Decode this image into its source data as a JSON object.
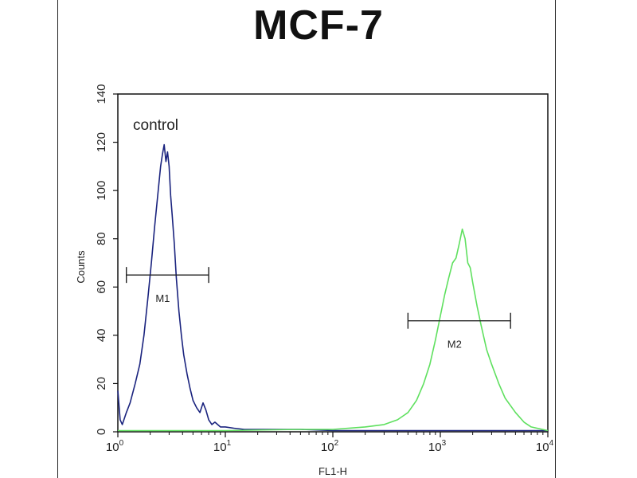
{
  "chart_data": {
    "type": "line",
    "title": "MCF-7",
    "xlabel": "FL1-H",
    "ylabel": "Counts",
    "x_scale": "log",
    "xlim": [
      1,
      10000
    ],
    "ylim": [
      0,
      140
    ],
    "x_ticks": [
      {
        "base": "10",
        "exp": "0",
        "value": 1
      },
      {
        "base": "10",
        "exp": "1",
        "value": 10
      },
      {
        "base": "10",
        "exp": "2",
        "value": 100
      },
      {
        "base": "10",
        "exp": "3",
        "value": 1000
      },
      {
        "base": "10",
        "exp": "4",
        "value": 10000
      }
    ],
    "y_ticks": [
      "0",
      "20",
      "40",
      "60",
      "80",
      "100",
      "120",
      "140"
    ],
    "annotation": "control",
    "colors": {
      "control": "#1a237e",
      "sample": "#5fe05f"
    },
    "markers": [
      {
        "label": "M1",
        "x_start": 1.2,
        "x_end": 7.0,
        "y": 65
      },
      {
        "label": "M2",
        "x_start": 500,
        "x_end": 4500,
        "y": 46
      }
    ],
    "series": [
      {
        "color_key": "control",
        "x": [
          1.0,
          1.05,
          1.1,
          1.2,
          1.3,
          1.45,
          1.6,
          1.75,
          1.9,
          2.05,
          2.2,
          2.35,
          2.5,
          2.6,
          2.7,
          2.8,
          2.9,
          3.0,
          3.1,
          3.2,
          3.35,
          3.5,
          3.7,
          3.9,
          4.1,
          4.4,
          4.7,
          5.0,
          5.4,
          5.8,
          6.2,
          6.6,
          7.0,
          7.5,
          8.0,
          9.0,
          10,
          12,
          15,
          20,
          30,
          50,
          100,
          300,
          1000,
          3000,
          10000
        ],
        "y": [
          17,
          5,
          3,
          8,
          12,
          20,
          28,
          40,
          55,
          70,
          85,
          98,
          110,
          115,
          119,
          112,
          116,
          110,
          98,
          90,
          78,
          64,
          50,
          40,
          32,
          24,
          18,
          13,
          10,
          8,
          12,
          9,
          5,
          3,
          4,
          2,
          2,
          1.5,
          1,
          1,
          1,
          1,
          0.5,
          0.5,
          0.5,
          0.5,
          0.5
        ]
      },
      {
        "color_key": "sample",
        "x": [
          1,
          10,
          50,
          100,
          200,
          300,
          400,
          500,
          600,
          700,
          800,
          900,
          1000,
          1100,
          1200,
          1300,
          1400,
          1500,
          1600,
          1700,
          1800,
          1900,
          2000,
          2200,
          2400,
          2700,
          3000,
          3500,
          4000,
          5000,
          6000,
          7000,
          10000
        ],
        "y": [
          0.5,
          0.5,
          1,
          1,
          2,
          3,
          5,
          8,
          13,
          20,
          28,
          38,
          48,
          57,
          64,
          70,
          72,
          78,
          84,
          80,
          70,
          68,
          62,
          52,
          44,
          34,
          28,
          20,
          14,
          8,
          4,
          2,
          0.5
        ]
      }
    ]
  }
}
